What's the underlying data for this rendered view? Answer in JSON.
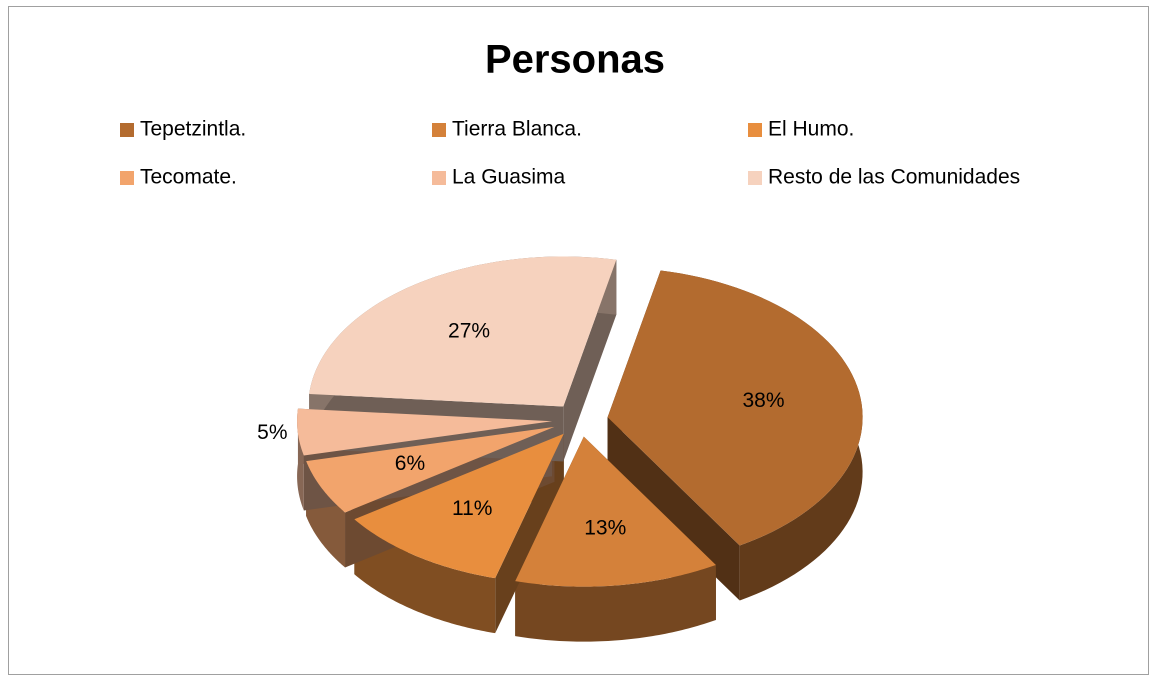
{
  "chart_data": {
    "type": "pie3d",
    "title": "Personas",
    "categories": [
      "Tepetzintla.",
      "Tierra Blanca.",
      "El Humo.",
      "Tecomate.",
      "La Guasima",
      "Resto de las Comunidades"
    ],
    "values": [
      38,
      13,
      11,
      6,
      5,
      27
    ],
    "value_labels": [
      "38%",
      "13%",
      "11%",
      "6%",
      "5%",
      "27%"
    ],
    "colors": [
      "#b36b2f",
      "#d4813a",
      "#e88e3e",
      "#f2a46c",
      "#f5bb9a",
      "#f6d2be"
    ],
    "legend": "top"
  }
}
